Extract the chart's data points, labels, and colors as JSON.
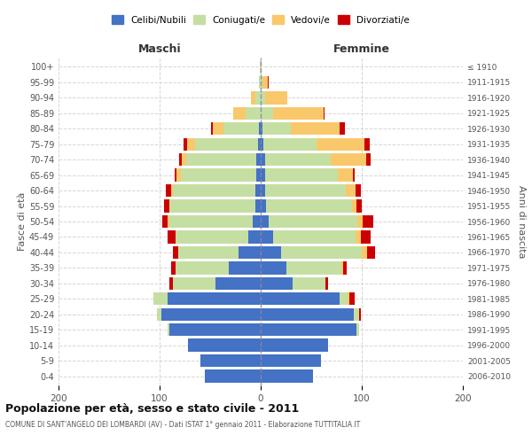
{
  "age_groups": [
    "0-4",
    "5-9",
    "10-14",
    "15-19",
    "20-24",
    "25-29",
    "30-34",
    "35-39",
    "40-44",
    "45-49",
    "50-54",
    "55-59",
    "60-64",
    "65-69",
    "70-74",
    "75-79",
    "80-84",
    "85-89",
    "90-94",
    "95-99",
    "100+"
  ],
  "birth_years": [
    "2006-2010",
    "2001-2005",
    "1996-2000",
    "1991-1995",
    "1986-1990",
    "1981-1985",
    "1976-1980",
    "1971-1975",
    "1966-1970",
    "1961-1965",
    "1956-1960",
    "1951-1955",
    "1946-1950",
    "1941-1945",
    "1936-1940",
    "1931-1935",
    "1926-1930",
    "1921-1925",
    "1916-1920",
    "1911-1915",
    "≤ 1910"
  ],
  "males": {
    "celibi": [
      55,
      60,
      72,
      90,
      98,
      92,
      45,
      32,
      22,
      12,
      8,
      5,
      5,
      4,
      4,
      3,
      2,
      0,
      0,
      0,
      0
    ],
    "coniugati": [
      0,
      0,
      0,
      2,
      5,
      14,
      42,
      52,
      60,
      72,
      82,
      85,
      82,
      75,
      70,
      62,
      35,
      15,
      5,
      2,
      1
    ],
    "vedovi": [
      0,
      0,
      0,
      0,
      0,
      0,
      0,
      0,
      0,
      0,
      2,
      0,
      2,
      4,
      4,
      8,
      10,
      12,
      5,
      0,
      0
    ],
    "divorziati": [
      0,
      0,
      0,
      0,
      0,
      0,
      3,
      5,
      5,
      8,
      5,
      6,
      5,
      2,
      3,
      3,
      2,
      0,
      0,
      0,
      0
    ]
  },
  "females": {
    "nubili": [
      52,
      60,
      67,
      95,
      92,
      78,
      32,
      25,
      20,
      12,
      8,
      5,
      4,
      4,
      4,
      3,
      2,
      0,
      0,
      0,
      0
    ],
    "coniugate": [
      0,
      0,
      0,
      2,
      5,
      8,
      32,
      55,
      80,
      82,
      88,
      85,
      80,
      72,
      65,
      52,
      28,
      12,
      4,
      2,
      0
    ],
    "vedove": [
      0,
      0,
      0,
      0,
      0,
      2,
      0,
      2,
      5,
      5,
      5,
      5,
      10,
      15,
      35,
      48,
      48,
      50,
      22,
      5,
      1
    ],
    "divorziate": [
      0,
      0,
      0,
      0,
      2,
      5,
      3,
      3,
      8,
      10,
      10,
      5,
      5,
      2,
      5,
      5,
      5,
      1,
      0,
      1,
      0
    ]
  },
  "colors": {
    "celibi_nubili": "#4472C4",
    "coniugati": "#C5DFA3",
    "vedovi": "#F9C86A",
    "divorziati": "#CC0000"
  },
  "title": "Popolazione per età, sesso e stato civile - 2011",
  "subtitle": "COMUNE DI SANT'ANGELO DEI LOMBARDI (AV) - Dati ISTAT 1° gennaio 2011 - Elaborazione TUTTITALIA.IT",
  "ylabel_left": "Fasce di età",
  "ylabel_right": "Anni di nascita",
  "xlabel_maschi": "Maschi",
  "xlabel_femmine": "Femmine",
  "xlim": 200,
  "background_color": "#ffffff",
  "grid_color": "#cccccc",
  "legend_labels": [
    "Celibi/Nubili",
    "Coniugati/e",
    "Vedovi/e",
    "Divorziati/e"
  ]
}
